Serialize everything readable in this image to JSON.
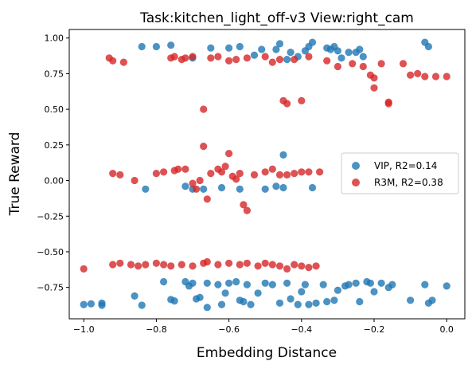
{
  "chart_data": {
    "type": "scatter",
    "title": "Task:kitchen_light_off-v3 View:right_cam",
    "xlabel": "Embedding Distance",
    "ylabel": "True Reward",
    "xlim": [
      -1.04,
      0.05
    ],
    "ylim": [
      -0.97,
      1.06
    ],
    "xticks": [
      -1.0,
      -0.8,
      -0.6,
      -0.4,
      -0.2,
      0.0
    ],
    "xtick_labels": [
      "−1.0",
      "−0.8",
      "−0.6",
      "−0.4",
      "−0.2",
      "0.0"
    ],
    "yticks": [
      -0.75,
      -0.5,
      -0.25,
      0.0,
      0.25,
      0.5,
      0.75,
      1.0
    ],
    "ytick_labels": [
      "−0.75",
      "−0.50",
      "−0.25",
      "0.00",
      "0.25",
      "0.50",
      "0.75",
      "1.00"
    ],
    "grid": false,
    "legend_position": "center-right",
    "series": [
      {
        "name": "VIP, R2=0.14",
        "color": "#1f77b4",
        "points": [
          [
            -1.0,
            -0.87
          ],
          [
            -0.98,
            -0.865
          ],
          [
            -0.95,
            -0.86
          ],
          [
            -0.95,
            -0.875
          ],
          [
            -0.86,
            -0.81
          ],
          [
            -0.84,
            -0.875
          ],
          [
            -0.83,
            -0.06
          ],
          [
            -0.78,
            -0.71
          ],
          [
            -0.76,
            -0.835
          ],
          [
            -0.75,
            -0.845
          ],
          [
            -0.72,
            -0.04
          ],
          [
            -0.72,
            -0.71
          ],
          [
            -0.71,
            -0.74
          ],
          [
            -0.7,
            -0.06
          ],
          [
            -0.7,
            -0.72
          ],
          [
            -0.69,
            -0.83
          ],
          [
            -0.68,
            -0.82
          ],
          [
            -0.67,
            -0.06
          ],
          [
            -0.66,
            -0.72
          ],
          [
            -0.66,
            -0.89
          ],
          [
            -0.63,
            -0.73
          ],
          [
            -0.62,
            -0.05
          ],
          [
            -0.62,
            -0.87
          ],
          [
            -0.61,
            -0.79
          ],
          [
            -0.6,
            -0.72
          ],
          [
            -0.58,
            -0.71
          ],
          [
            -0.57,
            -0.06
          ],
          [
            -0.57,
            -0.84
          ],
          [
            -0.56,
            -0.85
          ],
          [
            -0.55,
            -0.73
          ],
          [
            -0.54,
            -0.87
          ],
          [
            -0.52,
            -0.79
          ],
          [
            -0.5,
            -0.72
          ],
          [
            -0.5,
            -0.06
          ],
          [
            -0.48,
            -0.73
          ],
          [
            -0.47,
            -0.04
          ],
          [
            -0.46,
            -0.86
          ],
          [
            -0.45,
            -0.05
          ],
          [
            -0.44,
            -0.72
          ],
          [
            -0.43,
            -0.83
          ],
          [
            -0.41,
            -0.87
          ],
          [
            -0.4,
            -0.78
          ],
          [
            -0.39,
            -0.73
          ],
          [
            -0.38,
            -0.87
          ],
          [
            -0.37,
            -0.05
          ],
          [
            -0.36,
            -0.86
          ],
          [
            -0.34,
            -0.73
          ],
          [
            -0.33,
            -0.85
          ],
          [
            -0.31,
            -0.84
          ],
          [
            -0.3,
            -0.77
          ],
          [
            -0.28,
            -0.74
          ],
          [
            -0.27,
            -0.73
          ],
          [
            -0.25,
            -0.72
          ],
          [
            -0.24,
            -0.85
          ],
          [
            -0.22,
            -0.71
          ],
          [
            -0.21,
            -0.72
          ],
          [
            -0.2,
            -0.78
          ],
          [
            -0.18,
            -0.72
          ],
          [
            -0.16,
            -0.75
          ],
          [
            -0.15,
            -0.73
          ],
          [
            -0.1,
            -0.84
          ],
          [
            -0.06,
            -0.73
          ],
          [
            -0.05,
            -0.86
          ],
          [
            -0.04,
            -0.84
          ],
          [
            0.0,
            -0.74
          ],
          [
            -0.45,
            0.18
          ],
          [
            -0.84,
            0.94
          ],
          [
            -0.8,
            0.94
          ],
          [
            -0.76,
            0.95
          ],
          [
            -0.7,
            0.86
          ],
          [
            -0.65,
            0.93
          ],
          [
            -0.6,
            0.93
          ],
          [
            -0.57,
            0.94
          ],
          [
            -0.53,
            0.88
          ],
          [
            -0.51,
            0.92
          ],
          [
            -0.47,
            0.92
          ],
          [
            -0.46,
            0.96
          ],
          [
            -0.44,
            0.85
          ],
          [
            -0.43,
            0.9
          ],
          [
            -0.41,
            0.87
          ],
          [
            -0.39,
            0.91
          ],
          [
            -0.38,
            0.94
          ],
          [
            -0.37,
            0.97
          ],
          [
            -0.33,
            0.93
          ],
          [
            -0.32,
            0.92
          ],
          [
            -0.31,
            0.94
          ],
          [
            -0.3,
            0.91
          ],
          [
            -0.29,
            0.86
          ],
          [
            -0.27,
            0.9
          ],
          [
            -0.25,
            0.9
          ],
          [
            -0.24,
            0.92
          ],
          [
            -0.23,
            0.87
          ],
          [
            -0.06,
            0.97
          ],
          [
            -0.05,
            0.94
          ]
        ]
      },
      {
        "name": "R3M, R2=0.38",
        "color": "#d62728",
        "points": [
          [
            -1.0,
            -0.62
          ],
          [
            -0.92,
            -0.59
          ],
          [
            -0.9,
            -0.58
          ],
          [
            -0.87,
            -0.59
          ],
          [
            -0.85,
            -0.6
          ],
          [
            -0.83,
            -0.59
          ],
          [
            -0.8,
            -0.58
          ],
          [
            -0.78,
            -0.59
          ],
          [
            -0.76,
            -0.6
          ],
          [
            -0.73,
            -0.59
          ],
          [
            -0.7,
            -0.6
          ],
          [
            -0.67,
            -0.58
          ],
          [
            -0.66,
            -0.57
          ],
          [
            -0.63,
            -0.59
          ],
          [
            -0.6,
            -0.58
          ],
          [
            -0.57,
            -0.59
          ],
          [
            -0.55,
            -0.58
          ],
          [
            -0.52,
            -0.6
          ],
          [
            -0.5,
            -0.58
          ],
          [
            -0.48,
            -0.59
          ],
          [
            -0.46,
            -0.6
          ],
          [
            -0.44,
            -0.62
          ],
          [
            -0.42,
            -0.59
          ],
          [
            -0.4,
            -0.6
          ],
          [
            -0.38,
            -0.61
          ],
          [
            -0.36,
            -0.6
          ],
          [
            -0.92,
            0.05
          ],
          [
            -0.9,
            0.04
          ],
          [
            -0.86,
            0.0
          ],
          [
            -0.8,
            0.05
          ],
          [
            -0.78,
            0.06
          ],
          [
            -0.75,
            0.07
          ],
          [
            -0.74,
            0.08
          ],
          [
            -0.72,
            0.08
          ],
          [
            -0.7,
            -0.02
          ],
          [
            -0.69,
            -0.06
          ],
          [
            -0.68,
            0.0
          ],
          [
            -0.67,
            0.24
          ],
          [
            -0.66,
            -0.13
          ],
          [
            -0.65,
            0.05
          ],
          [
            -0.63,
            0.08
          ],
          [
            -0.62,
            0.06
          ],
          [
            -0.61,
            0.1
          ],
          [
            -0.6,
            0.19
          ],
          [
            -0.59,
            0.03
          ],
          [
            -0.58,
            0.01
          ],
          [
            -0.57,
            0.05
          ],
          [
            -0.56,
            -0.17
          ],
          [
            -0.55,
            -0.21
          ],
          [
            -0.53,
            0.04
          ],
          [
            -0.5,
            0.06
          ],
          [
            -0.48,
            0.08
          ],
          [
            -0.46,
            0.04
          ],
          [
            -0.44,
            0.04
          ],
          [
            -0.42,
            0.05
          ],
          [
            -0.4,
            0.06
          ],
          [
            -0.38,
            0.06
          ],
          [
            -0.35,
            0.06
          ],
          [
            -0.67,
            0.5
          ],
          [
            -0.45,
            0.56
          ],
          [
            -0.44,
            0.54
          ],
          [
            -0.4,
            0.56
          ],
          [
            -0.93,
            0.86
          ],
          [
            -0.92,
            0.84
          ],
          [
            -0.89,
            0.83
          ],
          [
            -0.76,
            0.86
          ],
          [
            -0.75,
            0.87
          ],
          [
            -0.73,
            0.85
          ],
          [
            -0.72,
            0.86
          ],
          [
            -0.7,
            0.87
          ],
          [
            -0.65,
            0.86
          ],
          [
            -0.63,
            0.87
          ],
          [
            -0.6,
            0.84
          ],
          [
            -0.58,
            0.85
          ],
          [
            -0.55,
            0.86
          ],
          [
            -0.5,
            0.87
          ],
          [
            -0.48,
            0.83
          ],
          [
            -0.46,
            0.85
          ],
          [
            -0.42,
            0.85
          ],
          [
            -0.38,
            0.87
          ],
          [
            -0.33,
            0.84
          ],
          [
            -0.3,
            0.8
          ],
          [
            -0.26,
            0.82
          ],
          [
            -0.23,
            0.8
          ],
          [
            -0.21,
            0.74
          ],
          [
            -0.2,
            0.72
          ],
          [
            -0.2,
            0.65
          ],
          [
            -0.18,
            0.82
          ],
          [
            -0.16,
            0.55
          ],
          [
            -0.16,
            0.54
          ],
          [
            -0.12,
            0.82
          ],
          [
            -0.1,
            0.74
          ],
          [
            -0.08,
            0.75
          ],
          [
            -0.06,
            0.73
          ],
          [
            -0.03,
            0.73
          ],
          [
            0.0,
            0.73
          ]
        ]
      }
    ]
  }
}
